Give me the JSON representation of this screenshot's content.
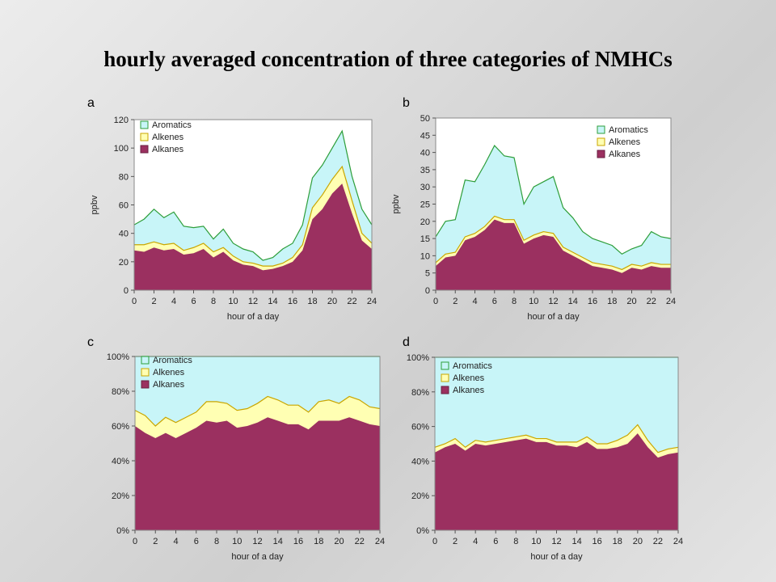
{
  "title": "hourly averaged concentration of three categories of NMHCs",
  "colors": {
    "aromatics_fill": "#c8f5f8",
    "aromatics_line": "#2e9e3a",
    "alkenes_fill": "#ffffb3",
    "alkenes_line": "#c9a600",
    "alkanes_fill": "#9b3060",
    "plot_bg": "#ffffff"
  },
  "chart_data": [
    {
      "id": "a",
      "panel_label": "a",
      "type": "area",
      "stacked": true,
      "xlabel": "hour of a day",
      "ylabel": "ppbv",
      "xlim": [
        0,
        24
      ],
      "ylim": [
        0,
        120
      ],
      "xticks": [
        0,
        2,
        4,
        6,
        8,
        10,
        12,
        14,
        16,
        18,
        20,
        22,
        24
      ],
      "xtick_labels": [
        "0",
        "2",
        "4",
        "6",
        "8",
        "10",
        "12",
        "14",
        "16",
        "18",
        "20",
        "22",
        "24"
      ],
      "yticks": [
        0,
        20,
        40,
        60,
        80,
        100,
        120
      ],
      "ytick_labels": [
        "0",
        "20",
        "40",
        "60",
        "80",
        "100",
        "120"
      ],
      "legend_position": "top-left",
      "x": [
        0,
        1,
        2,
        3,
        4,
        5,
        6,
        7,
        8,
        9,
        10,
        11,
        12,
        13,
        14,
        15,
        16,
        17,
        18,
        19,
        20,
        21,
        22,
        23,
        24
      ],
      "series": [
        {
          "name": "Aromatics",
          "key": "aromatics",
          "cumulative": [
            46,
            50,
            57,
            51,
            55,
            45,
            44,
            45,
            36,
            43,
            33,
            29,
            27,
            21,
            23,
            29,
            33,
            46,
            79,
            88,
            100,
            112,
            80,
            57,
            46
          ]
        },
        {
          "name": "Alkenes",
          "key": "alkenes",
          "cumulative": [
            32,
            32,
            34,
            32,
            33,
            28,
            30,
            33,
            27,
            30,
            24,
            20,
            19,
            17,
            17,
            19,
            23,
            32,
            58,
            67,
            78,
            87,
            63,
            40,
            33
          ]
        },
        {
          "name": "Alkanes",
          "key": "alkanes",
          "cumulative": [
            28,
            27,
            30,
            28,
            29,
            25,
            26,
            29,
            23,
            27,
            21,
            18,
            17,
            14,
            15,
            17,
            20,
            28,
            50,
            57,
            68,
            75,
            54,
            35,
            29
          ]
        }
      ]
    },
    {
      "id": "b",
      "panel_label": "b",
      "type": "area",
      "stacked": true,
      "xlabel": "hour of a day",
      "ylabel": "ppbv",
      "xlim": [
        0,
        24
      ],
      "ylim": [
        0,
        50
      ],
      "xticks": [
        0,
        2,
        4,
        6,
        8,
        10,
        12,
        14,
        16,
        18,
        20,
        22,
        24
      ],
      "xtick_labels": [
        "0",
        "2",
        "4",
        "6",
        "8",
        "10",
        "12",
        "14",
        "16",
        "18",
        "20",
        "22",
        "24"
      ],
      "yticks": [
        0,
        5,
        10,
        15,
        20,
        25,
        30,
        35,
        40,
        45,
        50
      ],
      "ytick_labels": [
        "0",
        "5",
        "10",
        "15",
        "20",
        "25",
        "30",
        "35",
        "40",
        "45",
        "50"
      ],
      "legend_position": "top-right",
      "x": [
        0,
        1,
        2,
        3,
        4,
        5,
        6,
        7,
        8,
        9,
        10,
        11,
        12,
        13,
        14,
        15,
        16,
        17,
        18,
        19,
        20,
        21,
        22,
        23,
        24
      ],
      "series": [
        {
          "name": "Aromatics",
          "key": "aromatics",
          "cumulative": [
            15.5,
            20,
            20.5,
            32,
            31.5,
            36.5,
            42,
            39,
            38.5,
            25,
            30,
            31.5,
            33,
            24,
            21,
            17,
            15,
            14,
            13,
            10.5,
            12,
            13,
            17,
            15.5,
            15
          ]
        },
        {
          "name": "Alkenes",
          "key": "alkenes",
          "cumulative": [
            8,
            10.5,
            11,
            15.5,
            16.5,
            18.5,
            21.5,
            20.5,
            20.5,
            14.5,
            16,
            17,
            16.5,
            12.5,
            11,
            9.5,
            8,
            7.5,
            7,
            6,
            7.5,
            7,
            8,
            7.5,
            7.5
          ]
        },
        {
          "name": "Alkanes",
          "key": "alkanes",
          "cumulative": [
            7,
            9.5,
            10,
            14.5,
            15.5,
            17.5,
            20.5,
            19.5,
            19.5,
            13.5,
            15,
            16,
            15.5,
            11.5,
            10,
            8.5,
            7,
            6.5,
            6,
            5,
            6.5,
            6,
            7,
            6.5,
            6.5
          ]
        }
      ]
    },
    {
      "id": "c",
      "panel_label": "c",
      "type": "area",
      "stacked": true,
      "normalized": true,
      "xlabel": "hour of a day",
      "ylabel": "",
      "xlim": [
        0,
        24
      ],
      "ylim": [
        0,
        100
      ],
      "xticks": [
        0,
        2,
        4,
        6,
        8,
        10,
        12,
        14,
        16,
        18,
        20,
        22,
        24
      ],
      "xtick_labels": [
        "0",
        "2",
        "4",
        "6",
        "8",
        "10",
        "12",
        "14",
        "16",
        "18",
        "20",
        "22",
        "24"
      ],
      "yticks": [
        0,
        20,
        40,
        60,
        80,
        100
      ],
      "ytick_labels": [
        "0%",
        "20%",
        "40%",
        "60%",
        "80%",
        "100%"
      ],
      "legend_position": "top-left",
      "x": [
        0,
        1,
        2,
        3,
        4,
        5,
        6,
        7,
        8,
        9,
        10,
        11,
        12,
        13,
        14,
        15,
        16,
        17,
        18,
        19,
        20,
        21,
        22,
        23,
        24
      ],
      "series": [
        {
          "name": "Aromatics",
          "key": "aromatics",
          "cumulative": [
            100,
            100,
            100,
            100,
            100,
            100,
            100,
            100,
            100,
            100,
            100,
            100,
            100,
            100,
            100,
            100,
            100,
            100,
            100,
            100,
            100,
            100,
            100,
            100,
            100
          ]
        },
        {
          "name": "Alkenes",
          "key": "alkenes",
          "cumulative": [
            69,
            66,
            60,
            65,
            62,
            65,
            68,
            74,
            74,
            73,
            69,
            70,
            73,
            77,
            75,
            72,
            72,
            68,
            74,
            75,
            73,
            77,
            75,
            71,
            70
          ]
        },
        {
          "name": "Alkanes",
          "key": "alkanes",
          "cumulative": [
            60,
            56,
            53,
            56,
            53,
            56,
            59,
            63,
            62,
            63,
            59,
            60,
            62,
            65,
            63,
            61,
            61,
            58,
            63,
            63,
            63,
            65,
            63,
            61,
            60
          ]
        }
      ]
    },
    {
      "id": "d",
      "panel_label": "d",
      "type": "area",
      "stacked": true,
      "normalized": true,
      "xlabel": "hour of a day",
      "ylabel": "",
      "xlim": [
        0,
        24
      ],
      "ylim": [
        0,
        100
      ],
      "xticks": [
        0,
        2,
        4,
        6,
        8,
        10,
        12,
        14,
        16,
        18,
        20,
        22,
        24
      ],
      "xtick_labels": [
        "0",
        "2",
        "4",
        "6",
        "8",
        "10",
        "12",
        "14",
        "16",
        "18",
        "20",
        "22",
        "24"
      ],
      "yticks": [
        0,
        20,
        40,
        60,
        80,
        100
      ],
      "ytick_labels": [
        "0%",
        "20%",
        "40%",
        "60%",
        "80%",
        "100%"
      ],
      "legend_position": "top-left",
      "x": [
        0,
        1,
        2,
        3,
        4,
        5,
        6,
        7,
        8,
        9,
        10,
        11,
        12,
        13,
        14,
        15,
        16,
        17,
        18,
        19,
        20,
        21,
        22,
        23,
        24
      ],
      "series": [
        {
          "name": "Aromatics",
          "key": "aromatics",
          "cumulative": [
            100,
            100,
            100,
            100,
            100,
            100,
            100,
            100,
            100,
            100,
            100,
            100,
            100,
            100,
            100,
            100,
            100,
            100,
            100,
            100,
            100,
            100,
            100,
            100,
            100
          ]
        },
        {
          "name": "Alkenes",
          "key": "alkenes",
          "cumulative": [
            48,
            50,
            53,
            48,
            52,
            51,
            52,
            53,
            54,
            55,
            53,
            53,
            51,
            51,
            51,
            54,
            50,
            50,
            52,
            55,
            61,
            52,
            45,
            47,
            48
          ]
        },
        {
          "name": "Alkanes",
          "key": "alkanes",
          "cumulative": [
            45,
            48,
            50,
            46,
            50,
            49,
            50,
            51,
            52,
            53,
            51,
            51,
            49,
            49,
            48,
            51,
            47,
            47,
            48,
            50,
            56,
            48,
            42,
            44,
            45
          ]
        }
      ]
    }
  ]
}
